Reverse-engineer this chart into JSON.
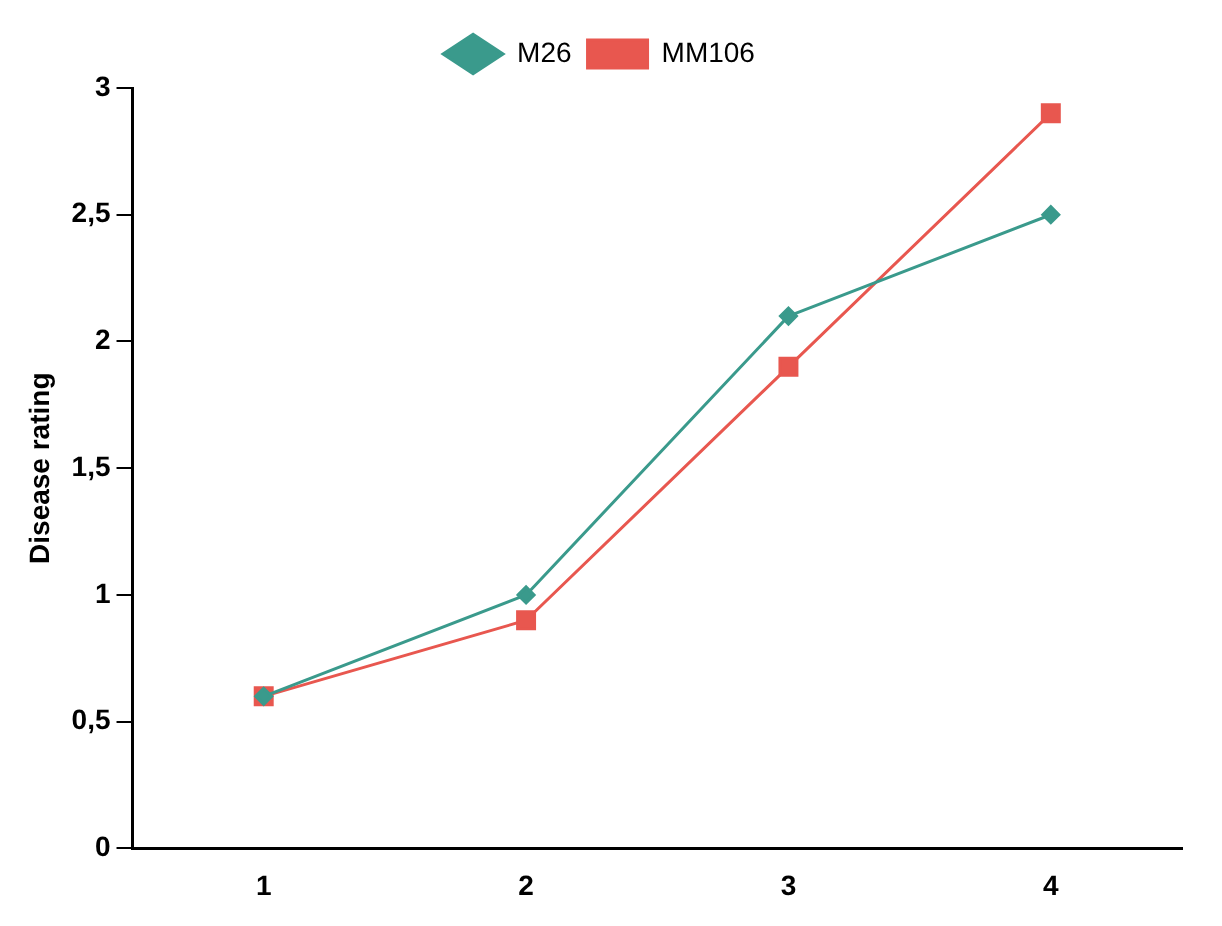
{
  "chart_data": {
    "type": "line",
    "ylabel": "Disease rating",
    "categories": [
      "1",
      "2",
      "3",
      "4"
    ],
    "series": [
      {
        "name": "M26",
        "color": "#3a9a8c",
        "values": [
          0.6,
          1.0,
          2.1,
          2.5
        ],
        "marker": "diamond"
      },
      {
        "name": "MM106",
        "color": "#e8574f",
        "values": [
          0.6,
          0.9,
          1.9,
          2.9
        ],
        "marker": "square"
      }
    ],
    "ylim": [
      0,
      3
    ],
    "yticks": [
      {
        "value": 0,
        "label": "0"
      },
      {
        "value": 0.5,
        "label": "0,5"
      },
      {
        "value": 1,
        "label": "1"
      },
      {
        "value": 1.5,
        "label": "1,5"
      },
      {
        "value": 2,
        "label": "2"
      },
      {
        "value": 2.5,
        "label": "2,5"
      },
      {
        "value": 3,
        "label": "3"
      }
    ],
    "grid": false,
    "legend": "top",
    "line_style": "solid"
  }
}
